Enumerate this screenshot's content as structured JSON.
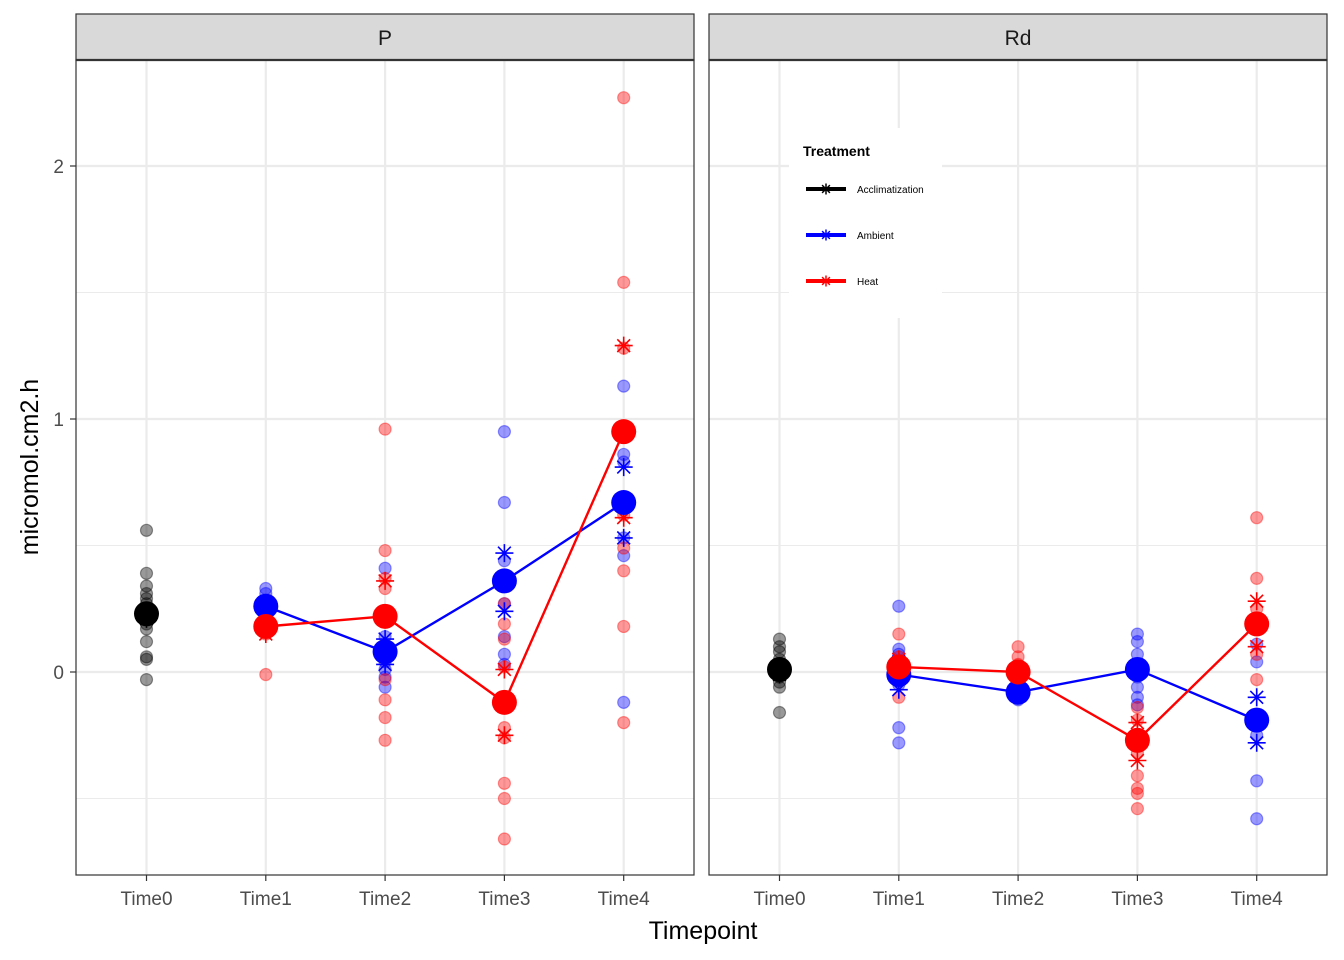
{
  "chart_data": {
    "type": "scatter",
    "xlabel": "Timepoint",
    "ylabel": "micromol.cm2.h",
    "categories": [
      "Time0",
      "Time1",
      "Time2",
      "Time3",
      "Time4"
    ],
    "ylim": [
      -0.8,
      2.4
    ],
    "yticks": [
      0,
      1,
      2
    ],
    "grid": true,
    "legend": {
      "title": "Treatment",
      "placement": "inside-top-left of Rd panel",
      "entries": [
        {
          "label": "Acclimatization",
          "color": "#000000"
        },
        {
          "label": "Ambient",
          "color": "#0000FF"
        },
        {
          "label": "Heat",
          "color": "#FF0000"
        }
      ]
    },
    "panels": [
      {
        "name": "P",
        "raw_points": [
          {
            "treatment": "Acclimatization",
            "x": "Time0",
            "values": [
              0.56,
              0.39,
              0.34,
              0.31,
              0.29,
              0.27,
              0.25,
              0.23,
              0.21,
              0.19,
              0.17,
              0.12,
              0.06,
              0.05,
              -0.03
            ]
          },
          {
            "treatment": "Ambient",
            "x": "Time1",
            "values": [
              0.33,
              0.31,
              0.28,
              0.26,
              0.23
            ]
          },
          {
            "treatment": "Heat",
            "x": "Time1",
            "values": [
              0.22,
              0.19,
              0.15,
              -0.01
            ]
          },
          {
            "treatment": "Ambient",
            "x": "Time2",
            "values": [
              0.41,
              0.14,
              0.08,
              0.04,
              0.01,
              -0.02,
              -0.06
            ]
          },
          {
            "treatment": "Heat",
            "x": "Time2",
            "values": [
              0.96,
              0.48,
              0.37,
              0.33,
              0.07,
              -0.03,
              -0.11,
              -0.18,
              -0.27
            ]
          },
          {
            "treatment": "Ambient",
            "x": "Time3",
            "values": [
              0.95,
              0.67,
              0.44,
              0.27,
              0.14,
              0.07,
              0.03
            ]
          },
          {
            "treatment": "Heat",
            "x": "Time3",
            "values": [
              0.27,
              0.19,
              0.13,
              0.02,
              -0.22,
              -0.26,
              -0.44,
              -0.5,
              -0.66
            ]
          },
          {
            "treatment": "Ambient",
            "x": "Time4",
            "values": [
              1.13,
              0.86,
              0.83,
              0.53,
              0.46,
              -0.12
            ]
          },
          {
            "treatment": "Heat",
            "x": "Time4",
            "values": [
              2.27,
              1.54,
              1.28,
              0.62,
              0.49,
              0.4,
              0.18,
              -0.2
            ]
          }
        ],
        "replicate_markers": [
          {
            "treatment": "Acclimatization",
            "x": "Time0",
            "values": [
              0.24,
              0.21
            ]
          },
          {
            "treatment": "Ambient",
            "x": "Time1",
            "values": [
              0.25
            ]
          },
          {
            "treatment": "Heat",
            "x": "Time1",
            "values": [
              0.15,
              0.2
            ]
          },
          {
            "treatment": "Ambient",
            "x": "Time2",
            "values": [
              0.13,
              0.03
            ]
          },
          {
            "treatment": "Heat",
            "x": "Time2",
            "values": [
              0.36,
              0.09
            ]
          },
          {
            "treatment": "Ambient",
            "x": "Time3",
            "values": [
              0.47,
              0.24
            ]
          },
          {
            "treatment": "Heat",
            "x": "Time3",
            "values": [
              0.01,
              -0.25
            ]
          },
          {
            "treatment": "Ambient",
            "x": "Time4",
            "values": [
              0.81,
              0.53
            ]
          },
          {
            "treatment": "Heat",
            "x": "Time4",
            "values": [
              1.29,
              0.61
            ]
          }
        ],
        "series": [
          {
            "name": "Acclimatization",
            "points": [
              {
                "x": "Time0",
                "y": 0.23
              }
            ]
          },
          {
            "name": "Ambient",
            "points": [
              {
                "x": "Time1",
                "y": 0.26
              },
              {
                "x": "Time2",
                "y": 0.08
              },
              {
                "x": "Time3",
                "y": 0.36
              },
              {
                "x": "Time4",
                "y": 0.67
              }
            ]
          },
          {
            "name": "Heat",
            "points": [
              {
                "x": "Time1",
                "y": 0.18
              },
              {
                "x": "Time2",
                "y": 0.22
              },
              {
                "x": "Time3",
                "y": -0.12
              },
              {
                "x": "Time4",
                "y": 0.95
              }
            ]
          }
        ]
      },
      {
        "name": "Rd",
        "raw_points": [
          {
            "treatment": "Acclimatization",
            "x": "Time0",
            "values": [
              0.13,
              0.1,
              0.08,
              0.05,
              0.03,
              0.01,
              -0.02,
              -0.04,
              -0.06,
              -0.16
            ]
          },
          {
            "treatment": "Ambient",
            "x": "Time1",
            "values": [
              0.26,
              0.09,
              0.07,
              0.04,
              0.02,
              -0.03,
              -0.05,
              -0.22,
              -0.28
            ]
          },
          {
            "treatment": "Heat",
            "x": "Time1",
            "values": [
              0.15,
              0.06,
              0.02,
              -0.02,
              -0.1
            ]
          },
          {
            "treatment": "Ambient",
            "x": "Time2",
            "values": [
              0.02,
              -0.04,
              -0.08,
              -0.11
            ]
          },
          {
            "treatment": "Heat",
            "x": "Time2",
            "values": [
              0.1,
              0.06,
              0.03,
              -0.02
            ]
          },
          {
            "treatment": "Ambient",
            "x": "Time3",
            "values": [
              0.15,
              0.12,
              0.07,
              0.03,
              -0.02,
              -0.06,
              -0.1,
              -0.13
            ]
          },
          {
            "treatment": "Heat",
            "x": "Time3",
            "values": [
              -0.14,
              -0.19,
              -0.32,
              -0.41,
              -0.46,
              -0.48,
              -0.54
            ]
          },
          {
            "treatment": "Ambient",
            "x": "Time4",
            "values": [
              0.11,
              0.04,
              -0.25,
              -0.43,
              -0.58
            ]
          },
          {
            "treatment": "Heat",
            "x": "Time4",
            "values": [
              0.61,
              0.37,
              0.25,
              0.18,
              0.07,
              -0.03
            ]
          }
        ],
        "replicate_markers": [
          {
            "treatment": "Acclimatization",
            "x": "Time0",
            "values": [
              0.02,
              -0.01
            ]
          },
          {
            "treatment": "Ambient",
            "x": "Time1",
            "values": [
              -0.07,
              0.04
            ]
          },
          {
            "treatment": "Heat",
            "x": "Time1",
            "values": [
              0.05,
              0.03
            ]
          },
          {
            "treatment": "Heat",
            "x": "Time3",
            "values": [
              -0.2,
              -0.35
            ]
          },
          {
            "treatment": "Ambient",
            "x": "Time4",
            "values": [
              -0.1,
              -0.28
            ]
          },
          {
            "treatment": "Heat",
            "x": "Time4",
            "values": [
              0.28,
              0.1
            ]
          }
        ],
        "series": [
          {
            "name": "Acclimatization",
            "points": [
              {
                "x": "Time0",
                "y": 0.01
              }
            ]
          },
          {
            "name": "Ambient",
            "points": [
              {
                "x": "Time1",
                "y": -0.01
              },
              {
                "x": "Time2",
                "y": -0.08
              },
              {
                "x": "Time3",
                "y": 0.01
              },
              {
                "x": "Time4",
                "y": -0.19
              }
            ]
          },
          {
            "name": "Heat",
            "points": [
              {
                "x": "Time1",
                "y": 0.02
              },
              {
                "x": "Time2",
                "y": 0.0
              },
              {
                "x": "Time3",
                "y": -0.27
              },
              {
                "x": "Time4",
                "y": 0.19
              }
            ]
          }
        ]
      }
    ]
  }
}
